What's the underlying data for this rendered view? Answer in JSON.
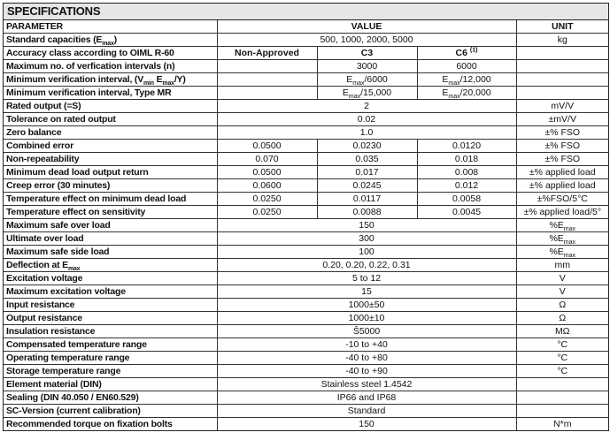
{
  "title": "SPECIFICATIONS",
  "header": {
    "parameter": "PARAMETER",
    "value": "VALUE",
    "unit": "UNIT"
  },
  "rows": [
    {
      "p": [
        {
          "t": "Standard capacities (E"
        },
        {
          "sub": "max"
        },
        {
          "t": ")"
        }
      ],
      "v": [
        "500, 1000, 2000, 5000"
      ],
      "u": "kg"
    },
    {
      "p": "Accuracy class according to OIML R-60",
      "v": [
        "Non-Approved",
        "C3",
        [
          {
            "t": "C6 "
          },
          {
            "sup": "(1)"
          }
        ]
      ],
      "u": "",
      "bold": true
    },
    {
      "p": "Maximum no. of verfication intervals (n)",
      "v": [
        "",
        "3000",
        "6000"
      ],
      "u": ""
    },
    {
      "p": [
        {
          "t": "Minimum verification interval, (V"
        },
        {
          "sub": "min"
        },
        {
          "t": " E"
        },
        {
          "sub": "max"
        },
        {
          "t": "/Y)"
        }
      ],
      "v": [
        "",
        [
          {
            "t": "E"
          },
          {
            "sub": "max"
          },
          {
            "t": "/6000"
          }
        ],
        [
          {
            "t": "E"
          },
          {
            "sub": "max"
          },
          {
            "t": "/12,000"
          }
        ]
      ],
      "u": ""
    },
    {
      "p": "Minimum verification interval, Type MR",
      "v": [
        "",
        [
          {
            "t": "E"
          },
          {
            "sub": "max"
          },
          {
            "t": "/15,000"
          }
        ],
        [
          {
            "t": "E"
          },
          {
            "sub": "max"
          },
          {
            "t": "/20,000"
          }
        ]
      ],
      "u": ""
    },
    {
      "p": "Rated output (=S)",
      "v": [
        "2"
      ],
      "u": "mV/V"
    },
    {
      "p": "Tolerance on rated output",
      "v": [
        "0.02"
      ],
      "u": "±mV/V"
    },
    {
      "p": "Zero balance",
      "v": [
        "1.0"
      ],
      "u": "±% FSO"
    },
    {
      "p": "Combined error",
      "v": [
        "0.0500",
        "0.0230",
        "0.0120"
      ],
      "u": "±% FSO"
    },
    {
      "p": "Non-repeatability",
      "v": [
        "0.070",
        "0.035",
        "0.018"
      ],
      "u": "±% FSO"
    },
    {
      "p": "Minimum dead load output return",
      "v": [
        "0.0500",
        "0.017",
        "0.008"
      ],
      "u": "±% applied load"
    },
    {
      "p": "Creep error (30 minutes)",
      "v": [
        "0.0600",
        "0.0245",
        "0.012"
      ],
      "u": "±% applied load"
    },
    {
      "p": "Temperature effect on minimum dead load",
      "v": [
        "0.0250",
        "0.0117",
        "0.0058"
      ],
      "u": "±%FSO/5°C"
    },
    {
      "p": "Temperature effect on sensitivity",
      "v": [
        "0.0250",
        "0.0088",
        "0.0045"
      ],
      "u": "±% applied load/5°"
    },
    {
      "p": "Maximum safe over load",
      "v": [
        "150"
      ],
      "u": [
        {
          "t": "%E"
        },
        {
          "sub": "max"
        }
      ]
    },
    {
      "p": "Ultimate over load",
      "v": [
        "300"
      ],
      "u": [
        {
          "t": "%E"
        },
        {
          "sub": "max"
        }
      ]
    },
    {
      "p": "Maximum safe side load",
      "v": [
        "100"
      ],
      "u": [
        {
          "t": "%E"
        },
        {
          "sub": "max"
        }
      ]
    },
    {
      "p": [
        {
          "t": "Deflection at E"
        },
        {
          "sub": "max"
        }
      ],
      "v": [
        "0.20, 0.20, 0.22, 0.31"
      ],
      "u": "mm"
    },
    {
      "p": "Excitation voltage",
      "v": [
        "5 to 12"
      ],
      "u": "V"
    },
    {
      "p": "Maximum excitation voltage",
      "v": [
        "15"
      ],
      "u": "V"
    },
    {
      "p": "Input resistance",
      "v": [
        "1000±50"
      ],
      "u": "Ω"
    },
    {
      "p": "Output resistance",
      "v": [
        "1000±10"
      ],
      "u": "Ω"
    },
    {
      "p": "Insulation resistance",
      "v": [
        "Š5000"
      ],
      "u": "MΩ"
    },
    {
      "p": "Compensated temperature range",
      "v": [
        "-10 to +40"
      ],
      "u": "°C"
    },
    {
      "p": "Operating temperature range",
      "v": [
        "-40 to +80"
      ],
      "u": "°C"
    },
    {
      "p": "Storage temperature range",
      "v": [
        "-40 to +90"
      ],
      "u": "°C"
    },
    {
      "p": "Element material (DIN)",
      "v": [
        "Stainless steel 1.4542"
      ],
      "u": ""
    },
    {
      "p": "Sealing (DIN 40.050 / EN60.529)",
      "v": [
        "IP66 and IP68"
      ],
      "u": ""
    },
    {
      "p": "SC-Version (current calibration)",
      "v": [
        "Standard"
      ],
      "u": ""
    },
    {
      "p": "Recommended torque on fixation bolts",
      "v": [
        "150"
      ],
      "u": "N*m"
    }
  ]
}
